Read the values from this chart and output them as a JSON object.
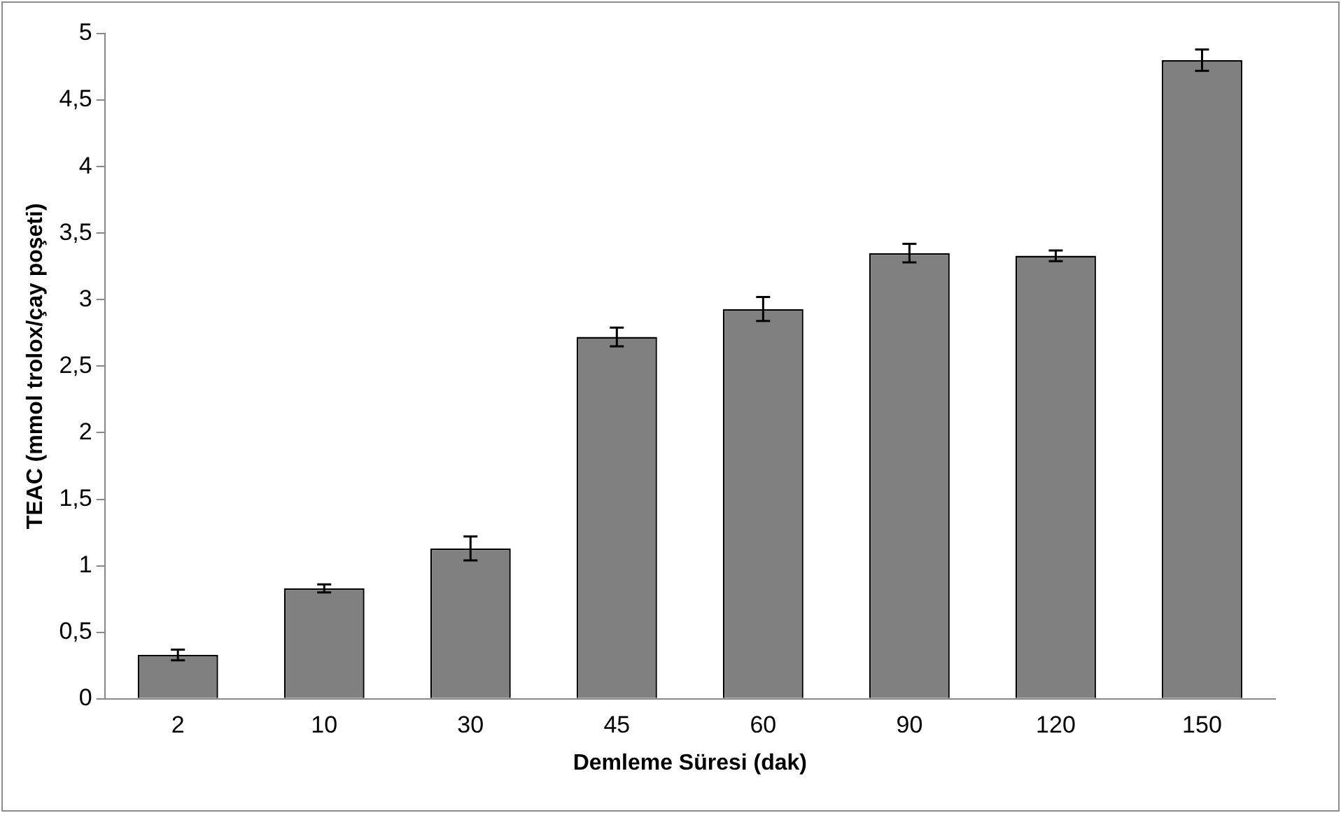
{
  "chart_data": {
    "type": "bar",
    "xlabel": "Demleme Süresi (dak)",
    "ylabel": "TEAC (mmol trolox/çay poşeti)",
    "categories": [
      "2",
      "10",
      "30",
      "45",
      "60",
      "90",
      "120",
      "150"
    ],
    "values": [
      0.33,
      0.83,
      1.13,
      2.72,
      2.93,
      3.35,
      3.33,
      4.8
    ],
    "errors": [
      0.04,
      0.03,
      0.09,
      0.07,
      0.09,
      0.07,
      0.04,
      0.08
    ],
    "color": "#808080",
    "ylim": [
      0,
      5
    ],
    "yticks": [
      0,
      {
        "value": 0.5,
        "label": "0,5"
      },
      1,
      {
        "value": 1.5,
        "label": "1,5"
      },
      2,
      {
        "value": 2.5,
        "label": "2,5"
      },
      3,
      {
        "value": 3.5,
        "label": "3,5"
      },
      4,
      {
        "value": 4.5,
        "label": "4,5"
      },
      5
    ],
    "grid": false,
    "legend": false
  }
}
